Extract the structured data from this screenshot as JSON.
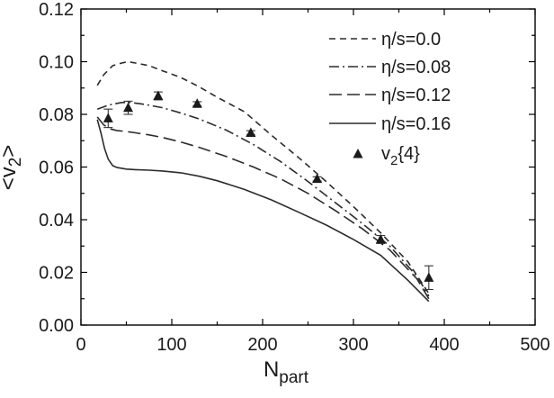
{
  "chart_data": {
    "type": "line",
    "xlim": [
      0,
      500
    ],
    "ylim": [
      0.0,
      0.12
    ],
    "x_ticks": [
      "0",
      "100",
      "200",
      "300",
      "400",
      "500"
    ],
    "y_ticks": [
      "0.00",
      "0.02",
      "0.04",
      "0.06",
      "0.08",
      "0.10",
      "0.12"
    ],
    "xlabel_main": "N",
    "xlabel_sub": "part",
    "ylabel_main": "<v",
    "ylabel_sub": "2",
    "ylabel_end": ">",
    "legend_position": "top-right",
    "grid": false,
    "series": [
      {
        "name": "η/s=0.0",
        "dash": "7,5",
        "x": [
          18,
          25,
          35,
          45,
          52,
          60,
          75,
          90,
          110,
          130,
          150,
          180,
          210,
          240,
          270,
          300,
          330,
          360,
          383
        ],
        "y": [
          0.091,
          0.095,
          0.0985,
          0.0995,
          0.1,
          0.0995,
          0.0985,
          0.0965,
          0.094,
          0.0905,
          0.0865,
          0.081,
          0.072,
          0.0635,
          0.0545,
          0.045,
          0.035,
          0.024,
          0.012
        ]
      },
      {
        "name": "η/s=0.08",
        "dash": "11,4,2,4",
        "x": [
          18,
          30,
          45,
          55,
          70,
          90,
          110,
          130,
          160,
          190,
          220,
          250,
          280,
          310,
          340,
          370,
          383
        ],
        "y": [
          0.082,
          0.0835,
          0.0845,
          0.0845,
          0.0838,
          0.0825,
          0.0805,
          0.0783,
          0.074,
          0.0685,
          0.062,
          0.0545,
          0.0465,
          0.0385,
          0.03,
          0.0185,
          0.011
        ]
      },
      {
        "name": "η/s=0.12",
        "dash": "14,6",
        "x": [
          18,
          25,
          32,
          40,
          50,
          60,
          75,
          90,
          110,
          130,
          160,
          190,
          220,
          250,
          280,
          310,
          340,
          370,
          383
        ],
        "y": [
          0.079,
          0.076,
          0.0745,
          0.0738,
          0.0735,
          0.073,
          0.0722,
          0.0712,
          0.0695,
          0.0675,
          0.064,
          0.06,
          0.0555,
          0.05,
          0.0435,
          0.0365,
          0.0285,
          0.0175,
          0.01
        ]
      },
      {
        "name": "η/s=0.16",
        "dash": "",
        "x": [
          18,
          22,
          26,
          30,
          35,
          40,
          50,
          60,
          75,
          90,
          110,
          130,
          150,
          180,
          210,
          240,
          270,
          300,
          330,
          360,
          383
        ],
        "y": [
          0.078,
          0.073,
          0.067,
          0.063,
          0.0605,
          0.0598,
          0.0592,
          0.059,
          0.0588,
          0.0585,
          0.0578,
          0.0565,
          0.0548,
          0.0515,
          0.0475,
          0.0428,
          0.038,
          0.0325,
          0.0265,
          0.017,
          0.009
        ]
      }
    ],
    "points": {
      "name_main": "v",
      "name_sub": "2",
      "name_end": "{4}",
      "x": [
        30,
        52,
        85,
        128,
        187,
        260,
        330,
        383
      ],
      "y": [
        0.0785,
        0.0825,
        0.087,
        0.084,
        0.073,
        0.0555,
        0.0325,
        0.018
      ],
      "err": [
        0.0035,
        0.0025,
        0.0015,
        0.0008,
        0.0008,
        0.0008,
        0.0015,
        0.0045
      ]
    }
  }
}
